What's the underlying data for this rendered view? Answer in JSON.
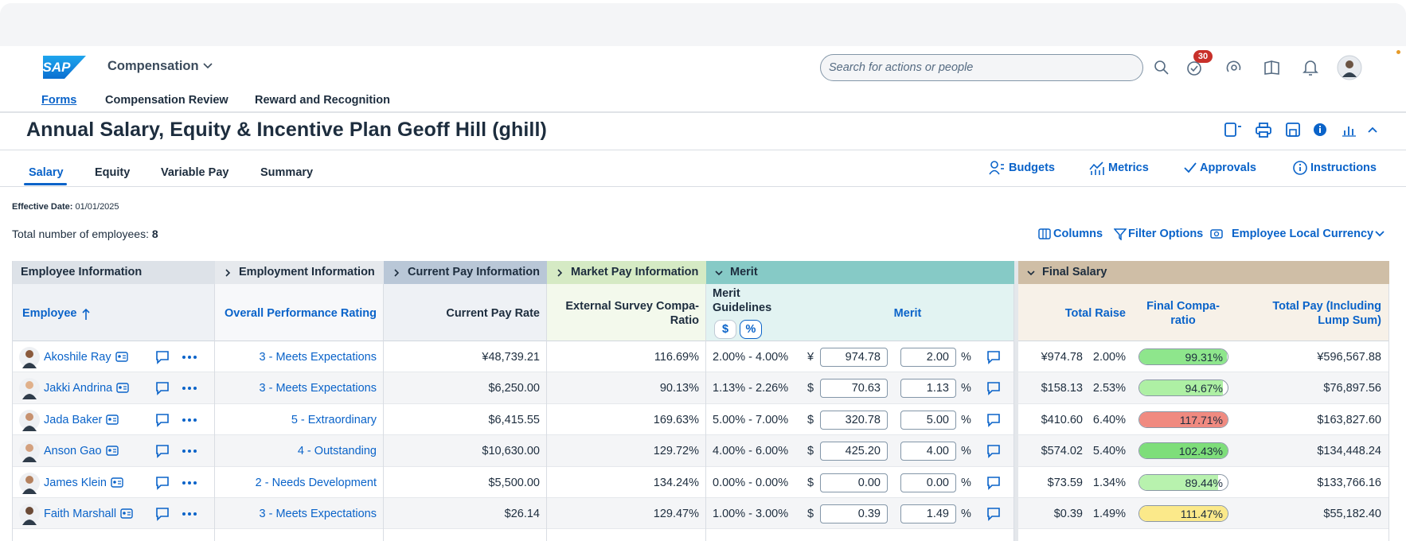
{
  "shell": {
    "logo": "SAP",
    "app": "Compensation",
    "search_placeholder": "Search for actions or people",
    "badge": "30"
  },
  "nav": [
    "Forms",
    "Compensation Review",
    "Reward and Recognition"
  ],
  "header": {
    "title": "Annual Salary, Equity & Incentive Plan Geoff Hill (ghill)"
  },
  "tabs": [
    "Salary",
    "Equity",
    "Variable Pay",
    "Summary"
  ],
  "actions": [
    "Budgets",
    "Metrics",
    "Approvals",
    "Instructions"
  ],
  "effective": {
    "label": "Effective Date:",
    "value": "01/01/2025"
  },
  "total": {
    "label": "Total number of employees:",
    "value": "8"
  },
  "toolbar": [
    "Columns",
    "Filter Options",
    "Employee Local Currency"
  ],
  "table": {
    "groups": [
      "Employee Information",
      "Employment Information",
      "Current Pay Information",
      "Market Pay Information",
      "Merit",
      "Final Salary"
    ],
    "columns": [
      "Employee",
      "Overall Performance Rating",
      "Current Pay Rate",
      "External Survey Compa-Ratio",
      "Merit Guidelines",
      "Merit",
      "Total Raise",
      "Final Compa-ratio",
      "Total Pay (Including Lump Sum)"
    ],
    "guideline_buttons": [
      "$",
      "%"
    ],
    "pct_unit": "%",
    "rows": [
      {
        "name": "Akoshile Ray",
        "rating": "3 - Meets Expectations",
        "pay": "¥48,739.21",
        "compa": "116.69%",
        "guidelines": "2.00% - 4.00%",
        "currency": "¥",
        "merit": "974.78",
        "merit_pct": "2.00",
        "raise": "¥974.78",
        "raise_pct": "2.00%",
        "final_compa": "99.31%",
        "final_compa_color": "#8ee68c",
        "total_pay": "¥596,567.88"
      },
      {
        "name": "Jakki Andrina",
        "rating": "3 - Meets Expectations",
        "pay": "$6,250.00",
        "compa": "90.13%",
        "guidelines": "1.13% - 2.26%",
        "currency": "$",
        "merit": "70.63",
        "merit_pct": "1.13",
        "raise": "$158.13",
        "raise_pct": "2.53%",
        "final_compa": "94.67%",
        "final_compa_color": "#aef0a4",
        "total_pay": "$76,897.56"
      },
      {
        "name": "Jada Baker",
        "rating": "5 - Extraordinary",
        "pay": "$6,415.55",
        "compa": "169.63%",
        "guidelines": "5.00% - 7.00%",
        "currency": "$",
        "merit": "320.78",
        "merit_pct": "5.00",
        "raise": "$410.60",
        "raise_pct": "6.40%",
        "final_compa": "117.71%",
        "final_compa_color": "#f08a80",
        "total_pay": "$163,827.60"
      },
      {
        "name": "Anson Gao",
        "rating": "4 - Outstanding",
        "pay": "$10,630.00",
        "compa": "129.72%",
        "guidelines": "4.00% - 6.00%",
        "currency": "$",
        "merit": "425.20",
        "merit_pct": "4.00",
        "raise": "$574.02",
        "raise_pct": "5.40%",
        "final_compa": "102.43%",
        "final_compa_color": "#7ede7a",
        "total_pay": "$134,448.24"
      },
      {
        "name": "James Klein",
        "rating": "2 - Needs Development",
        "pay": "$5,500.00",
        "compa": "134.24%",
        "guidelines": "0.00% - 0.00%",
        "currency": "$",
        "merit": "0.00",
        "merit_pct": "0.00",
        "raise": "$73.59",
        "raise_pct": "1.34%",
        "final_compa": "89.44%",
        "final_compa_color": "#b8f2ae",
        "total_pay": "$133,766.16"
      },
      {
        "name": "Faith Marshall",
        "rating": "3 - Meets Expectations",
        "pay": "$26.14",
        "compa": "129.47%",
        "guidelines": "1.00% - 3.00%",
        "currency": "$",
        "merit": "0.39",
        "merit_pct": "1.49",
        "raise": "$0.39",
        "raise_pct": "1.49%",
        "final_compa": "111.47%",
        "final_compa_color": "#fbe98a",
        "total_pay": "$55,182.40"
      }
    ]
  }
}
